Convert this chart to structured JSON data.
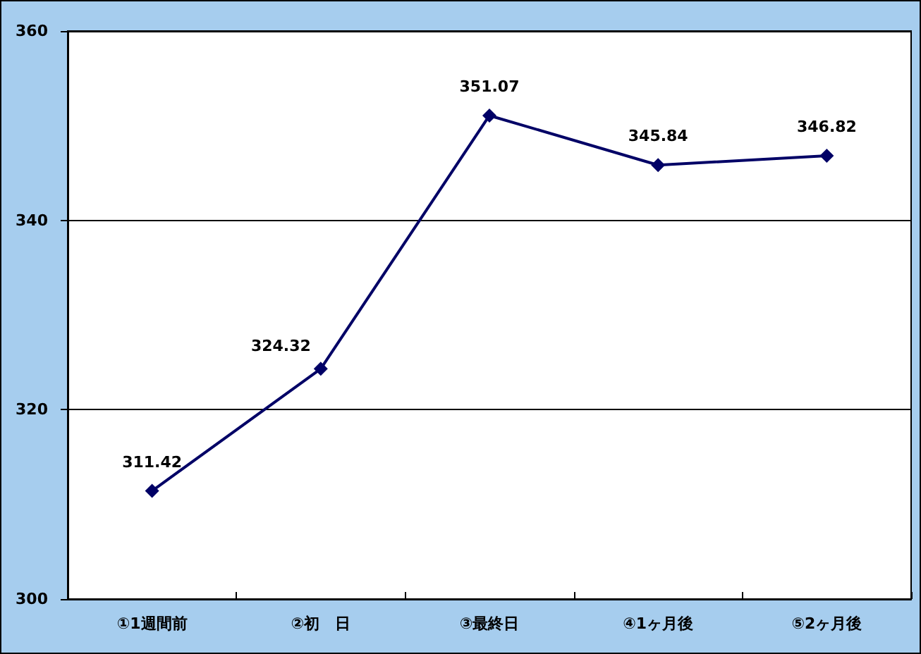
{
  "chart_data": {
    "type": "line",
    "categories": [
      "①1週間前",
      "②初　日",
      "③最終日",
      "④1ヶ月後",
      "⑤2ヶ月後"
    ],
    "series": [
      {
        "color": "#000066",
        "values": [
          311.42,
          324.32,
          351.07,
          345.84,
          346.82
        ]
      }
    ],
    "ylim": [
      300,
      360
    ],
    "yticks": [
      300,
      320,
      340,
      360
    ],
    "grid": "y",
    "marker": "diamond",
    "line_style": "solid",
    "data_labels": true
  }
}
